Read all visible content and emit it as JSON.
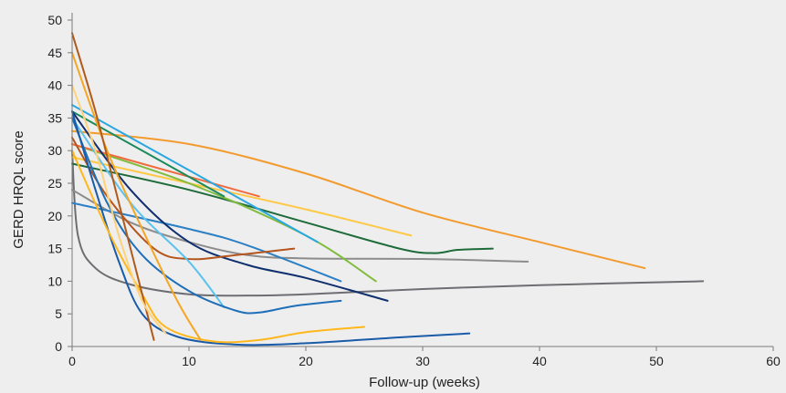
{
  "chart_data": {
    "type": "line",
    "title": "",
    "xlabel": "Follow-up (weeks)",
    "ylabel": "GERD HRQL score",
    "xlim": [
      0,
      60
    ],
    "ylim": [
      0,
      50
    ],
    "xticks": [
      0,
      10,
      20,
      30,
      40,
      50,
      60
    ],
    "yticks": [
      0,
      5,
      10,
      15,
      20,
      25,
      30,
      35,
      40,
      45,
      50
    ],
    "grid": false,
    "legend": "none",
    "series": [
      {
        "color": "#f39a2d",
        "points": [
          [
            0,
            33
          ],
          [
            10,
            31
          ],
          [
            20,
            26.5
          ],
          [
            30,
            20.5
          ],
          [
            40,
            16
          ],
          [
            49,
            12
          ]
        ]
      },
      {
        "color": "#6d6e71",
        "points": [
          [
            0,
            30
          ],
          [
            0.5,
            17
          ],
          [
            2,
            12
          ],
          [
            5,
            9.5
          ],
          [
            10,
            8
          ],
          [
            15,
            7.8
          ],
          [
            20,
            8
          ],
          [
            30,
            8.8
          ],
          [
            40,
            9.4
          ],
          [
            54,
            10
          ]
        ]
      },
      {
        "color": "#1e6b3a",
        "points": [
          [
            0,
            28
          ],
          [
            10,
            24
          ],
          [
            20,
            19
          ],
          [
            28,
            15
          ],
          [
            31,
            14.3
          ],
          [
            33,
            14.8
          ],
          [
            36,
            15
          ]
        ]
      },
      {
        "color": "#8c8c8c",
        "points": [
          [
            0,
            24
          ],
          [
            5,
            19
          ],
          [
            10,
            16
          ],
          [
            15,
            14
          ],
          [
            20,
            13.5
          ],
          [
            30,
            13.4
          ],
          [
            39,
            13
          ]
        ]
      },
      {
        "color": "#ffc845",
        "points": [
          [
            0,
            29
          ],
          [
            10,
            25
          ],
          [
            20,
            21
          ],
          [
            29,
            17
          ]
        ]
      },
      {
        "color": "#82bc3e",
        "points": [
          [
            0,
            31
          ],
          [
            10,
            25
          ],
          [
            20,
            17
          ],
          [
            26,
            10
          ]
        ]
      },
      {
        "color": "#ef6b3e",
        "points": [
          [
            0,
            31
          ],
          [
            10,
            26
          ],
          [
            16,
            23
          ]
        ]
      },
      {
        "color": "#2aa7e0",
        "points": [
          [
            0,
            37
          ],
          [
            10,
            27
          ],
          [
            21,
            16
          ]
        ]
      },
      {
        "color": "#1a8a5a",
        "points": [
          [
            0,
            36
          ],
          [
            13,
            23
          ]
        ]
      },
      {
        "color": "#2b7fc4",
        "points": [
          [
            0,
            22
          ],
          [
            10,
            18
          ],
          [
            15,
            15.5
          ],
          [
            23,
            10
          ]
        ]
      },
      {
        "color": "#102f6e",
        "points": [
          [
            0,
            36
          ],
          [
            5,
            24
          ],
          [
            10,
            16
          ],
          [
            15,
            12.5
          ],
          [
            20,
            10.5
          ],
          [
            27,
            7
          ]
        ]
      },
      {
        "color": "#b5541c",
        "points": [
          [
            0,
            32
          ],
          [
            3,
            23
          ],
          [
            7,
            15
          ],
          [
            10,
            13.4
          ],
          [
            14,
            14
          ],
          [
            19,
            15
          ]
        ]
      },
      {
        "color": "#5bc2ee",
        "points": [
          [
            0,
            35
          ],
          [
            5,
            22
          ],
          [
            10,
            13
          ],
          [
            13,
            6
          ]
        ]
      },
      {
        "color": "#1f6fb8",
        "points": [
          [
            0,
            35
          ],
          [
            3,
            22
          ],
          [
            6,
            14
          ],
          [
            10,
            8.5
          ],
          [
            14,
            5.5
          ],
          [
            16,
            5.2
          ],
          [
            19,
            6.2
          ],
          [
            23,
            7
          ]
        ]
      },
      {
        "color": "#1a5ba8",
        "points": [
          [
            0,
            36
          ],
          [
            2,
            24
          ],
          [
            4,
            13
          ],
          [
            6,
            5
          ],
          [
            9,
            1.5
          ],
          [
            14,
            0.3
          ],
          [
            20,
            0.5
          ],
          [
            28,
            1.4
          ],
          [
            34,
            2
          ]
        ]
      },
      {
        "color": "#ffb81c",
        "points": [
          [
            0,
            30
          ],
          [
            3,
            18
          ],
          [
            6,
            8
          ],
          [
            8,
            3
          ],
          [
            12,
            0.8
          ],
          [
            16,
            1
          ],
          [
            20,
            2.2
          ],
          [
            25,
            3
          ]
        ]
      },
      {
        "color": "#f5a623",
        "points": [
          [
            0,
            45
          ],
          [
            3,
            30
          ],
          [
            6,
            18
          ],
          [
            9,
            7
          ],
          [
            11,
            1
          ]
        ]
      },
      {
        "color": "#b05a1a",
        "points": [
          [
            0,
            48
          ],
          [
            2,
            36
          ],
          [
            4,
            22
          ],
          [
            6,
            8
          ],
          [
            7,
            1
          ]
        ]
      },
      {
        "color": "#ffd27a",
        "points": [
          [
            0,
            40
          ],
          [
            2,
            30
          ],
          [
            4,
            17
          ],
          [
            6,
            7
          ],
          [
            8,
            2
          ]
        ]
      }
    ]
  }
}
